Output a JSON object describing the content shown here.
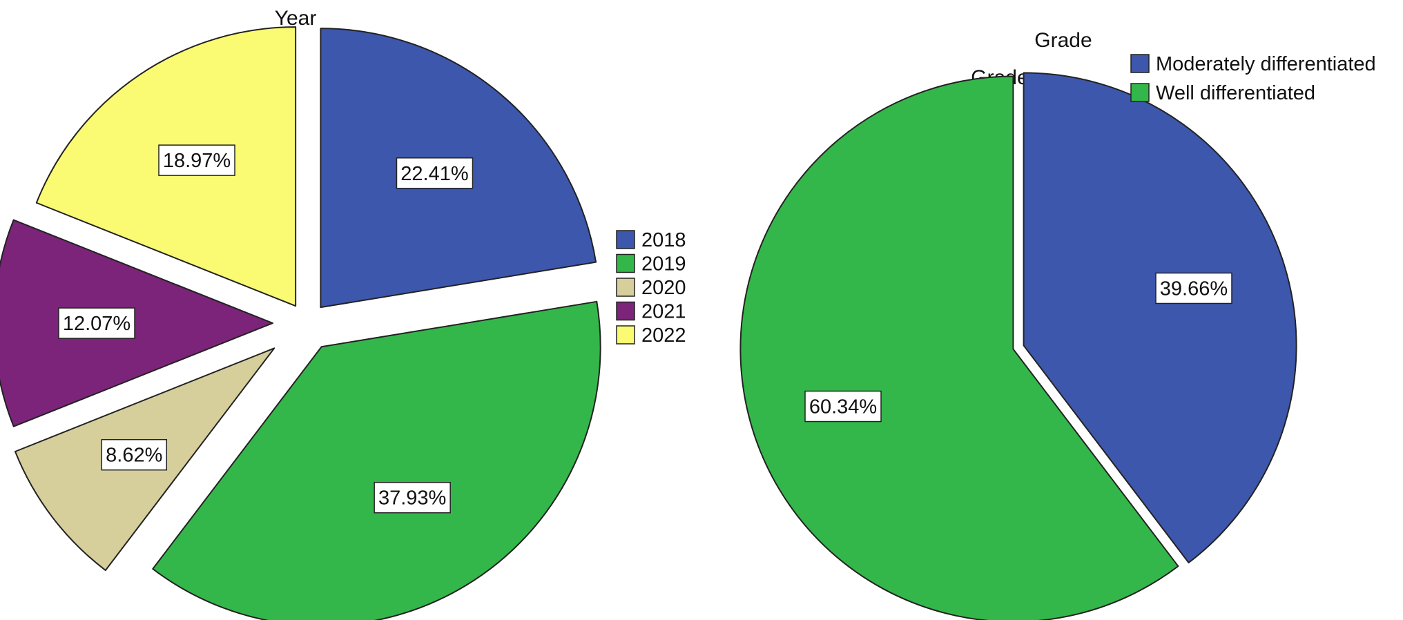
{
  "chart_data": [
    {
      "type": "pie",
      "title": "Year",
      "legend_position": "right",
      "slices": [
        {
          "label": "2018",
          "value": 22.41,
          "display": "22.41%",
          "color": "#3d57ad"
        },
        {
          "label": "2019",
          "value": 37.93,
          "display": "37.93%",
          "color": "#34b74a"
        },
        {
          "label": "2020",
          "value": 8.62,
          "display": "8.62%",
          "color": "#d6cf9c"
        },
        {
          "label": "2021",
          "value": 12.07,
          "display": "12.07%",
          "color": "#7b2479"
        },
        {
          "label": "2022",
          "value": 18.97,
          "display": "18.97%",
          "color": "#fafa73"
        }
      ]
    },
    {
      "type": "pie",
      "title": "Grade",
      "legend_title": "Grade",
      "legend_position": "top-right",
      "slices": [
        {
          "label": "Moderately differentiated",
          "value": 39.66,
          "display": "39.66%",
          "color": "#3d57ad"
        },
        {
          "label": "Well differentiated",
          "value": 60.34,
          "display": "60.34%",
          "color": "#34b74a"
        }
      ]
    }
  ]
}
